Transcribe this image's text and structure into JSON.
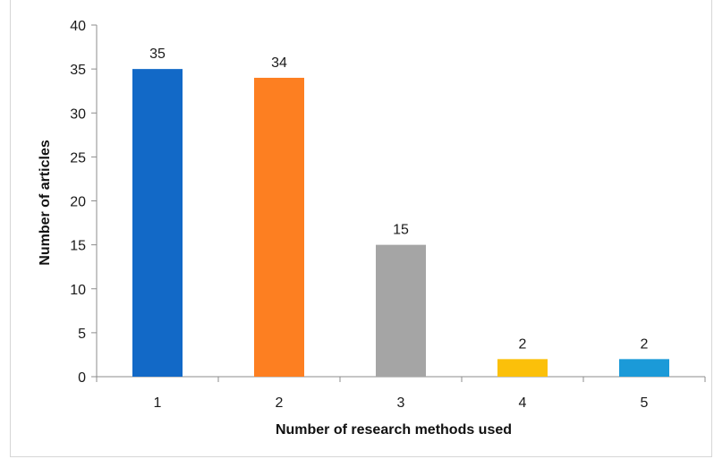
{
  "chart_data": {
    "type": "bar",
    "title": "",
    "xlabel": "Number of research methods used",
    "ylabel": "Number of articles",
    "categories": [
      "1",
      "2",
      "3",
      "4",
      "5"
    ],
    "values": [
      35,
      34,
      15,
      2,
      2
    ],
    "data_labels": [
      "35",
      "34",
      "15",
      "2",
      "2"
    ],
    "ylim": [
      0,
      40
    ],
    "yticks": [
      0,
      5,
      10,
      15,
      20,
      25,
      30,
      35,
      40
    ],
    "ytick_labels": [
      "0",
      "5",
      "10",
      "15",
      "20",
      "25",
      "30",
      "35",
      "40"
    ],
    "bar_colors": [
      "#1269c7",
      "#fd7f21",
      "#a5a5a5",
      "#fbc00a",
      "#1b9ad8"
    ],
    "grid": false,
    "legend": "none"
  }
}
